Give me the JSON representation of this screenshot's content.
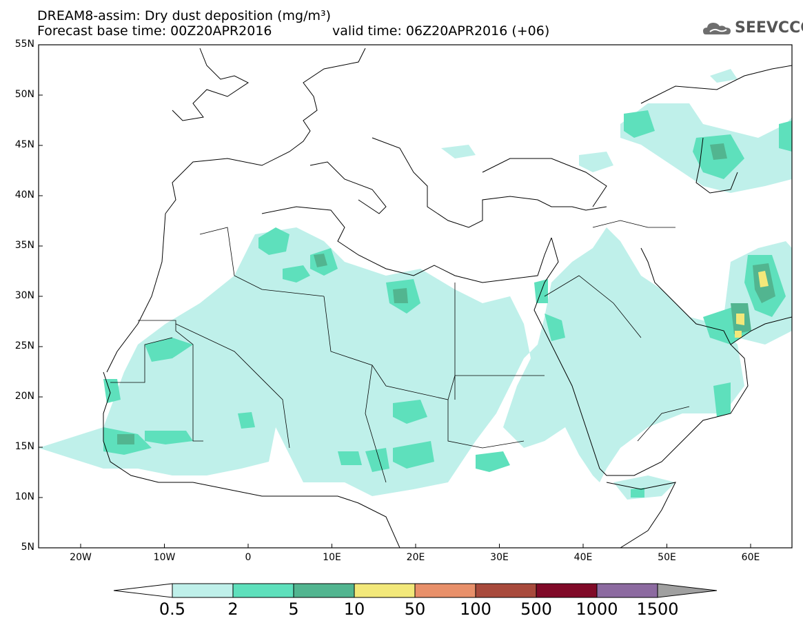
{
  "title": {
    "line1": "DREAM8-assim: Dry dust deposition (mg/m³)",
    "line2": "Forecast base time: 00Z20APR2016",
    "valid": "valid time: 06Z20APR2016 (+06)"
  },
  "logo": {
    "text": "SEEVCCC",
    "icon": "cloud-logo-icon"
  },
  "axes": {
    "lat_labels": [
      "55N",
      "50N",
      "45N",
      "40N",
      "35N",
      "30N",
      "25N",
      "20N",
      "15N",
      "10N",
      "5N"
    ],
    "lon_labels": [
      "20W",
      "10W",
      "0",
      "10E",
      "20E",
      "30E",
      "40E",
      "50E",
      "60E"
    ]
  },
  "colorbar": {
    "labels": [
      "0.5",
      "2",
      "5",
      "10",
      "50",
      "100",
      "500",
      "1000",
      "1500"
    ],
    "colors": [
      "#ffffff",
      "#bff0ea",
      "#5ee0bc",
      "#52b590",
      "#f2e87a",
      "#e8906a",
      "#a84a3c",
      "#800a28",
      "#8c6aa0",
      "#a0a0a0"
    ]
  }
}
